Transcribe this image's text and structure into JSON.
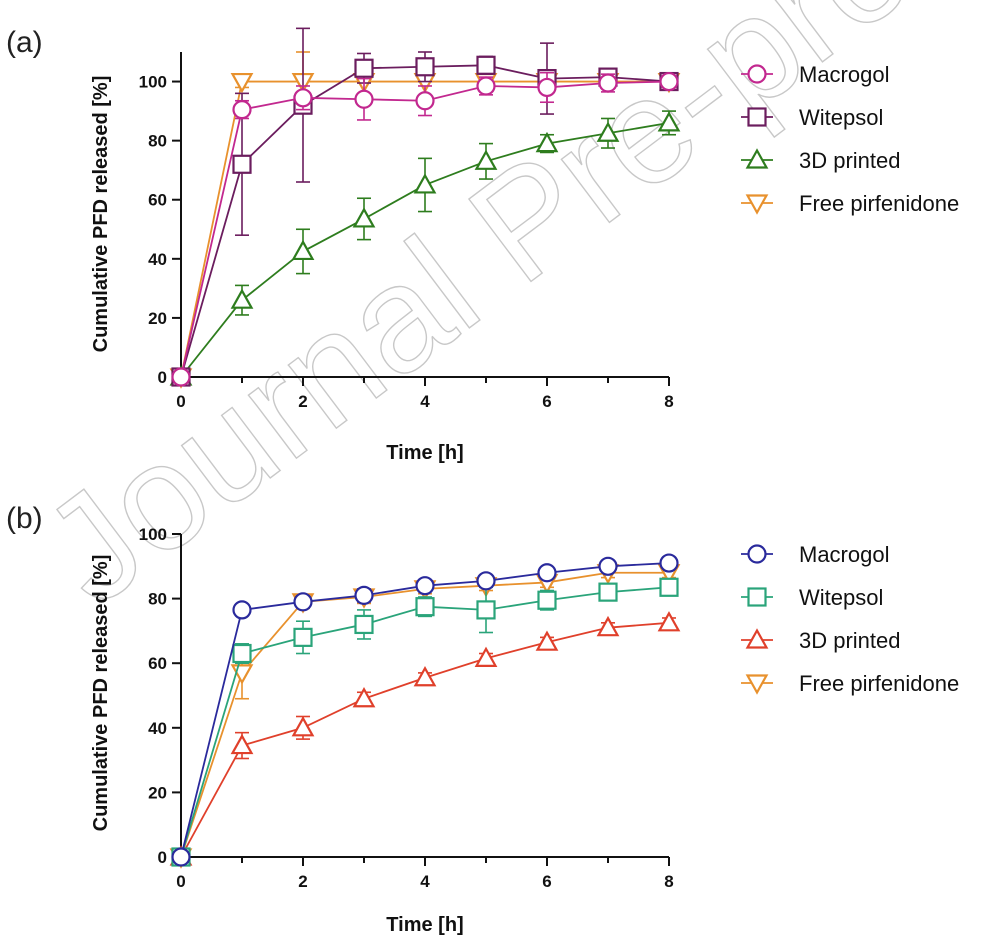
{
  "watermark": "Journal Pre-proof",
  "chart_data": [
    {
      "type": "line",
      "panel_label": "(a)",
      "xlabel": "Time [h]",
      "ylabel": "Cumulative PFD released [%]",
      "xlim": [
        0,
        8
      ],
      "ylim": [
        0,
        110
      ],
      "xticks": [
        0,
        2,
        4,
        6,
        8
      ],
      "yticks": [
        0,
        20,
        40,
        60,
        80,
        100
      ],
      "legend_position": "right",
      "series": [
        {
          "name": "Macrogol",
          "marker": "circle",
          "color": "#c2288f",
          "x": [
            0,
            1,
            2,
            3,
            4,
            5,
            6,
            7,
            8
          ],
          "y": [
            0,
            90.5,
            94.5,
            94,
            93.5,
            98.5,
            98,
            99.5,
            100
          ],
          "err": [
            0,
            3,
            4,
            7,
            5,
            3,
            5,
            3,
            1
          ]
        },
        {
          "name": "Witepsol",
          "marker": "square",
          "color": "#6b1d5e",
          "x": [
            0,
            1,
            2,
            3,
            4,
            5,
            6,
            7,
            8
          ],
          "y": [
            0,
            72,
            92,
            104.5,
            105,
            105.5,
            101,
            101.5,
            100
          ],
          "err": [
            0,
            24,
            26,
            5,
            5,
            3,
            12,
            2,
            1
          ]
        },
        {
          "name": "3D printed",
          "marker": "triangle-up",
          "color": "#2e7d1e",
          "x": [
            0,
            1,
            2,
            3,
            4,
            5,
            6,
            7,
            8
          ],
          "y": [
            0,
            26,
            42.5,
            53.5,
            65,
            73,
            79,
            82.5,
            86
          ],
          "err": [
            0,
            5,
            7.5,
            7,
            9,
            6,
            3,
            5,
            4
          ]
        },
        {
          "name": "Free pirfenidone",
          "marker": "triangle-down",
          "color": "#e8912d",
          "x": [
            0,
            1,
            2,
            3,
            4,
            5,
            6,
            7,
            8
          ],
          "y": [
            0,
            100,
            100,
            100,
            100,
            100,
            100,
            100,
            100
          ],
          "err": [
            0,
            2,
            10,
            0,
            0,
            0,
            0,
            0,
            0
          ]
        }
      ]
    },
    {
      "type": "line",
      "panel_label": "(b)",
      "xlabel": "Time [h]",
      "ylabel": "Cumulative PFD released [%]",
      "xlim": [
        0,
        8
      ],
      "ylim": [
        0,
        100
      ],
      "xticks": [
        0,
        2,
        4,
        6,
        8
      ],
      "yticks": [
        0,
        20,
        40,
        60,
        80,
        100
      ],
      "legend_position": "right",
      "series": [
        {
          "name": "Macrogol",
          "marker": "circle",
          "color": "#2a2a9c",
          "x": [
            0,
            1,
            2,
            3,
            4,
            5,
            6,
            7,
            8
          ],
          "y": [
            0,
            76.5,
            79,
            81,
            84,
            85.5,
            88,
            90,
            91
          ],
          "err": [
            0,
            1.5,
            1.5,
            2,
            1.5,
            1.5,
            1.5,
            1.5,
            1.5
          ]
        },
        {
          "name": "Witepsol",
          "marker": "square",
          "color": "#2aa47a",
          "x": [
            0,
            1,
            2,
            3,
            4,
            5,
            6,
            7,
            8
          ],
          "y": [
            0,
            63,
            68,
            72,
            77.5,
            76.5,
            79.5,
            82,
            83.5
          ],
          "err": [
            0,
            3,
            5,
            4.5,
            3,
            7,
            3,
            2,
            2
          ]
        },
        {
          "name": "3D printed",
          "marker": "triangle-up",
          "color": "#e0402b",
          "x": [
            0,
            1,
            2,
            3,
            4,
            5,
            6,
            7,
            8
          ],
          "y": [
            0,
            34.5,
            40,
            49,
            55.5,
            61.5,
            66.5,
            71,
            72.5
          ],
          "err": [
            0,
            4,
            3.5,
            2,
            1.5,
            1.5,
            1.5,
            1.5,
            1.5
          ]
        },
        {
          "name": "Free pirfenidone",
          "marker": "triangle-down",
          "color": "#e8912d",
          "x": [
            0,
            1,
            2,
            3,
            4,
            5,
            6,
            7,
            8
          ],
          "y": [
            0,
            57,
            79,
            80.5,
            83,
            84,
            85,
            88,
            88
          ],
          "err": [
            0,
            8,
            2,
            2,
            1.5,
            1.5,
            1.5,
            1.5,
            1.5
          ]
        }
      ]
    }
  ]
}
